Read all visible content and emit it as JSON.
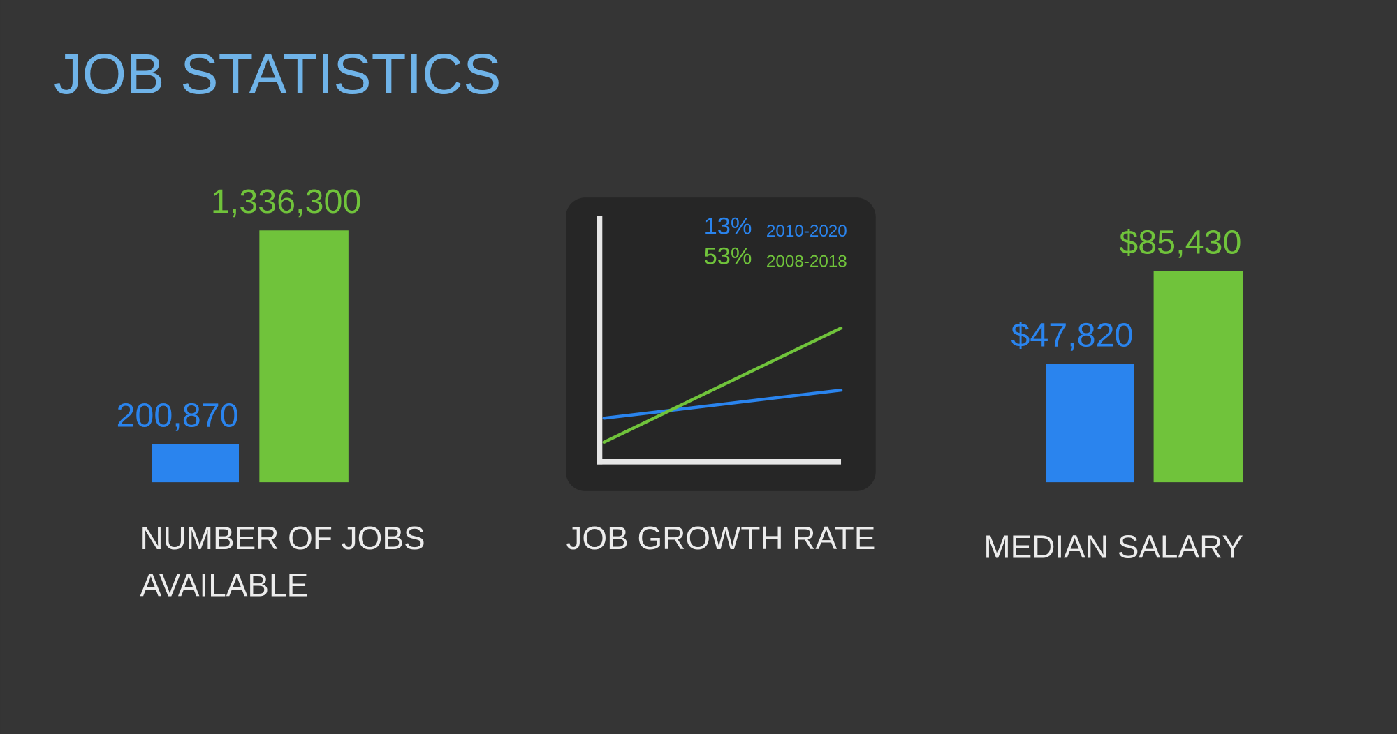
{
  "title": "JOB STATISTICS",
  "chart_data": [
    {
      "type": "bar",
      "title": "NUMBER OF JOBS AVAILABLE",
      "values": [
        200870,
        1336300
      ],
      "value_labels": [
        "200,870",
        "1,336,300"
      ],
      "colors": [
        "#2a84ee",
        "#70c33b"
      ]
    },
    {
      "type": "line",
      "title": "JOB GROWTH RATE",
      "series": [
        {
          "name": "2010-2020",
          "color": "#2a84ee",
          "values": [
            13
          ],
          "value_labels": [
            "13%"
          ]
        },
        {
          "name": "2008-2018",
          "color": "#70c33b",
          "values": [
            53
          ],
          "value_labels": [
            "53%"
          ]
        }
      ]
    },
    {
      "type": "bar",
      "title": "MEDIAN SALARY",
      "values": [
        47820,
        85430
      ],
      "value_labels": [
        "$47,820",
        "$85,430"
      ],
      "colors": [
        "#2a84ee",
        "#70c33b"
      ]
    }
  ]
}
